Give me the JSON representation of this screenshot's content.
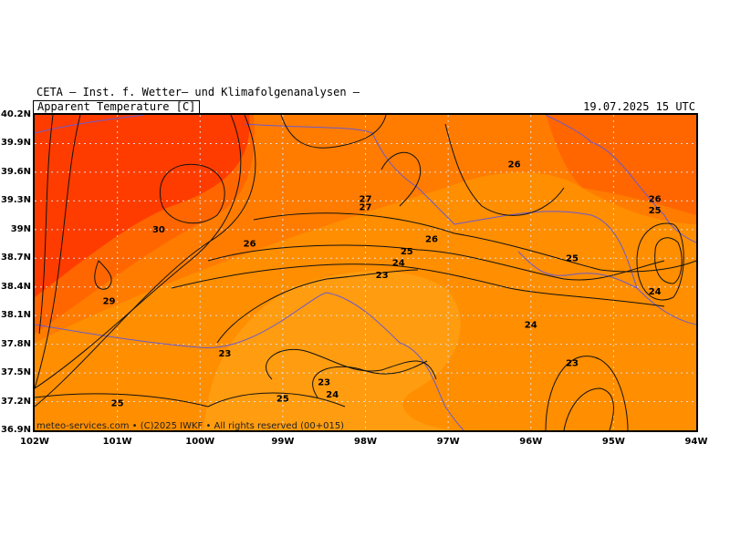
{
  "header": {
    "title": "CETA – Inst. f. Wetter– und Klimafolgenanalysen –",
    "variable": "Apparent Temperature [C]",
    "valid_time": "19.07.2025 15 UTC"
  },
  "footer": {
    "credit": "meteo-services.com • (C)2025 IWKF • All rights reserved (00+015)"
  },
  "map": {
    "lon_range": [
      -102,
      -94
    ],
    "lat_range": [
      36.9,
      40.2
    ],
    "lon_ticks": [
      "102W",
      "101W",
      "100W",
      "99W",
      "98W",
      "97W",
      "96W",
      "95W",
      "94W"
    ],
    "lat_ticks": [
      "40.2N",
      "39.9N",
      "39.6N",
      "39.3N",
      "39N",
      "38.7N",
      "38.4N",
      "38.1N",
      "37.8N",
      "37.5N",
      "37.2N",
      "36.9N"
    ],
    "colors": {
      "t30": "#ff3c00",
      "t27": "#ff6600",
      "t25": "#ff7c00",
      "t24": "#ff8e00",
      "t23": "#ff9c10",
      "contour": "#111111",
      "border": "#6a5acd",
      "grid": "#dcdcdc"
    },
    "contour_labels": [
      {
        "text": "30",
        "lon": -100.5,
        "lat": 39.0
      },
      {
        "text": "29",
        "lon": -101.1,
        "lat": 38.25
      },
      {
        "text": "26",
        "lon": -99.4,
        "lat": 38.85
      },
      {
        "text": "27",
        "lon": -98.0,
        "lat": 39.32
      },
      {
        "text": "27",
        "lon": -98.0,
        "lat": 39.23
      },
      {
        "text": "26",
        "lon": -96.2,
        "lat": 39.68
      },
      {
        "text": "26",
        "lon": -97.2,
        "lat": 38.9
      },
      {
        "text": "25",
        "lon": -97.5,
        "lat": 38.77
      },
      {
        "text": "24",
        "lon": -97.6,
        "lat": 38.65
      },
      {
        "text": "23",
        "lon": -97.8,
        "lat": 38.52
      },
      {
        "text": "26",
        "lon": -94.5,
        "lat": 39.32
      },
      {
        "text": "25",
        "lon": -94.5,
        "lat": 39.2
      },
      {
        "text": "25",
        "lon": -95.5,
        "lat": 38.7
      },
      {
        "text": "24",
        "lon": -94.5,
        "lat": 38.35
      },
      {
        "text": "24",
        "lon": -96.0,
        "lat": 38.0
      },
      {
        "text": "23",
        "lon": -99.7,
        "lat": 37.7
      },
      {
        "text": "23",
        "lon": -98.5,
        "lat": 37.4
      },
      {
        "text": "24",
        "lon": -98.4,
        "lat": 37.27
      },
      {
        "text": "25",
        "lon": -99.0,
        "lat": 37.23
      },
      {
        "text": "25",
        "lon": -101.0,
        "lat": 37.18
      },
      {
        "text": "23",
        "lon": -95.5,
        "lat": 37.6
      }
    ]
  }
}
